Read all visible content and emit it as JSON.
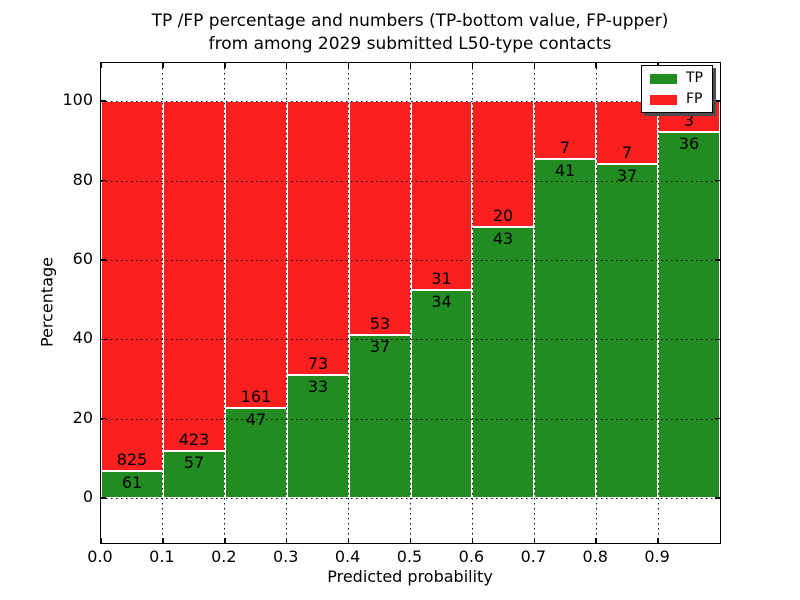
{
  "title": {
    "line1": "TP /FP percentage and numbers (TP-bottom value, FP-upper)",
    "line2": "from among 2029 submitted L50-type contacts"
  },
  "x_axis": {
    "label": "Predicted probability",
    "tick_labels": [
      "0.0",
      "0.1",
      "0.2",
      "0.3",
      "0.4",
      "0.5",
      "0.6",
      "0.7",
      "0.8",
      "0.9"
    ],
    "tick_values": [
      0.0,
      0.1,
      0.2,
      0.3,
      0.4,
      0.5,
      0.6,
      0.7,
      0.8,
      0.9
    ]
  },
  "y_axis": {
    "label": "Percentage",
    "tick_labels": [
      "0",
      "20",
      "40",
      "60",
      "80",
      "100"
    ],
    "tick_values": [
      0,
      20,
      40,
      60,
      80,
      100
    ]
  },
  "legend": {
    "items": [
      {
        "label": "TP",
        "color": "#228b22"
      },
      {
        "label": "FP",
        "color": "#fa2020"
      }
    ]
  },
  "colors": {
    "tp": "#228b22",
    "fp": "#fa2020",
    "grid": "#000000",
    "frame": "#000000",
    "background": "#ffffff"
  },
  "chart_data": {
    "type": "bar",
    "stacked": true,
    "normalized": "percent-of-bin-total",
    "title": "TP /FP percentage and numbers (TP-bottom value, FP-upper) from among 2029 submitted L50-type contacts",
    "xlabel": "Predicted probability",
    "ylabel": "Percentage",
    "bin_starts": [
      0.0,
      0.1,
      0.2,
      0.3,
      0.4,
      0.5,
      0.6,
      0.7,
      0.8,
      0.9
    ],
    "bin_width": 0.1,
    "series": [
      {
        "name": "TP",
        "color": "#228b22",
        "counts": [
          61,
          57,
          47,
          33,
          37,
          34,
          43,
          41,
          37,
          36
        ]
      },
      {
        "name": "FP",
        "color": "#fa2020",
        "counts": [
          825,
          423,
          161,
          73,
          53,
          31,
          20,
          7,
          7,
          3
        ]
      }
    ],
    "tp_percent": [
      6.88,
      11.88,
      22.6,
      31.13,
      41.11,
      52.31,
      68.25,
      85.42,
      84.09,
      92.31
    ],
    "total_contacts": 2029,
    "xlim": [
      0.0,
      1.0
    ],
    "ylim_visible": [
      0,
      100
    ],
    "grid": "dotted",
    "legend_position": "upper right"
  }
}
